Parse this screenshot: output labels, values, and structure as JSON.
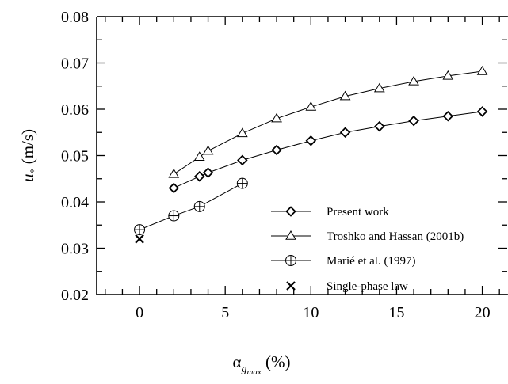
{
  "chart_data": {
    "type": "line",
    "xlim": [
      -2.5,
      21.5
    ],
    "ylim": [
      0.02,
      0.08
    ],
    "x_ticks": [
      0,
      5,
      10,
      15,
      20
    ],
    "x_tick_labels": [
      "0",
      "5",
      "10",
      "15",
      "20"
    ],
    "y_ticks": [
      0.02,
      0.03,
      0.04,
      0.05,
      0.06,
      0.07,
      0.08
    ],
    "y_tick_labels": [
      "0.02",
      "0.03",
      "0.04",
      "0.05",
      "0.06",
      "0.07",
      "0.08"
    ],
    "xlabel": {
      "main": "α",
      "sub": "g",
      "subsub": "max",
      "unit": " (%)"
    },
    "ylabel": {
      "main": "u",
      "sub": "*",
      "unit": " (m/s)"
    },
    "grid": false,
    "legend_position": "center-right",
    "series": [
      {
        "name": "Present work",
        "marker": "diamond",
        "connected": true,
        "x": [
          2,
          3.5,
          4,
          6,
          8,
          10,
          12,
          14,
          16,
          18,
          20
        ],
        "y": [
          0.043,
          0.0455,
          0.0463,
          0.049,
          0.0512,
          0.0532,
          0.055,
          0.0563,
          0.0575,
          0.0585,
          0.0595
        ]
      },
      {
        "name": "Troshko and Hassan (2001b)",
        "marker": "triangle",
        "connected": true,
        "x": [
          2,
          3.5,
          4,
          6,
          8,
          10,
          12,
          14,
          16,
          18,
          20
        ],
        "y": [
          0.046,
          0.0497,
          0.051,
          0.0548,
          0.058,
          0.0605,
          0.0628,
          0.0645,
          0.066,
          0.0672,
          0.0682
        ]
      },
      {
        "name": "Marié et al. (1997)",
        "marker": "circle-plus",
        "connected": true,
        "x": [
          0,
          2,
          3.5,
          6
        ],
        "y": [
          0.034,
          0.037,
          0.039,
          0.044
        ]
      },
      {
        "name": "Single-phase law",
        "marker": "x",
        "connected": false,
        "x": [
          0
        ],
        "y": [
          0.032
        ]
      }
    ]
  }
}
